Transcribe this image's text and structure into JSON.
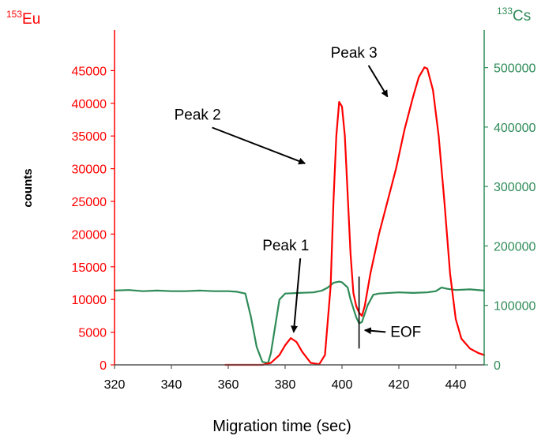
{
  "chart_data": {
    "type": "line",
    "xlabel": "Migration time (sec)",
    "left_axis": {
      "label_sup": "153",
      "label": "Eu",
      "title": "counts",
      "color": "#ff0000",
      "ylim": [
        0,
        50000
      ],
      "ticks": [
        0,
        5000,
        10000,
        15000,
        20000,
        25000,
        30000,
        35000,
        40000,
        45000
      ]
    },
    "right_axis": {
      "label_sup": "133",
      "label": "Cs",
      "color": "#2e8b57",
      "ylim": [
        0,
        550000
      ],
      "ticks": [
        0,
        100000,
        200000,
        300000,
        400000,
        500000
      ]
    },
    "xlim": [
      320,
      450
    ],
    "xticks": [
      320,
      340,
      360,
      380,
      400,
      420,
      440
    ],
    "series": [
      {
        "name": "153Eu",
        "axis": "left",
        "color": "#ff0000",
        "x": [
          359,
          364,
          368,
          372,
          375,
          378,
          380,
          382,
          384,
          386,
          389,
          392,
          394,
          396,
          397,
          398,
          399,
          400,
          401,
          402,
          403,
          404,
          405,
          406,
          407,
          408,
          410,
          413,
          416,
          419,
          422,
          425,
          427,
          429,
          430,
          432,
          434,
          436,
          438,
          440,
          442,
          445,
          448,
          450
        ],
        "y": [
          0,
          0,
          0,
          0,
          300,
          1500,
          3000,
          4100,
          3500,
          2000,
          300,
          100,
          1500,
          12000,
          25000,
          35000,
          40200,
          39500,
          35000,
          26000,
          17000,
          11000,
          9000,
          8000,
          7500,
          9000,
          14000,
          20000,
          25000,
          30000,
          36000,
          41000,
          44000,
          45500,
          45300,
          42000,
          35000,
          25000,
          14000,
          7000,
          4000,
          2500,
          1800,
          1500
        ]
      },
      {
        "name": "133Cs",
        "axis": "right",
        "color": "#2e8b57",
        "x": [
          320,
          325,
          330,
          335,
          340,
          345,
          350,
          355,
          360,
          363,
          366,
          368,
          369,
          370,
          372,
          374,
          375,
          377,
          378,
          380,
          385,
          390,
          393,
          395,
          397,
          399,
          400,
          402,
          403,
          405,
          406,
          407,
          409,
          411,
          413,
          420,
          425,
          430,
          433,
          435,
          437,
          440,
          445,
          450
        ],
        "y": [
          125000,
          126000,
          124000,
          125000,
          124000,
          124000,
          125000,
          124000,
          124000,
          123000,
          120000,
          80000,
          55000,
          30000,
          5000,
          3000,
          20000,
          80000,
          110000,
          120000,
          121000,
          122000,
          125000,
          130000,
          138000,
          140000,
          139000,
          130000,
          110000,
          80000,
          70000,
          72000,
          100000,
          118000,
          120000,
          122000,
          121000,
          122000,
          124000,
          130000,
          128000,
          126000,
          127000,
          125000
        ]
      }
    ],
    "annotations": [
      {
        "text": "Peak 1",
        "tx": 372,
        "ty": 17500,
        "ax": 383,
        "ay": 5000
      },
      {
        "text": "Peak 2",
        "tx": 341,
        "ty": 37500,
        "ax": 387,
        "ay": 30800
      },
      {
        "text": "Peak 3",
        "tx": 396,
        "ty": 47000,
        "ax": 416,
        "ay": 41000
      },
      {
        "text": "EOF",
        "tx": 417,
        "ty": 4300,
        "ax": 408,
        "ay": 5300
      }
    ],
    "eof_marker": {
      "x": 406,
      "y_from": 2500,
      "y_to": 13500
    }
  }
}
